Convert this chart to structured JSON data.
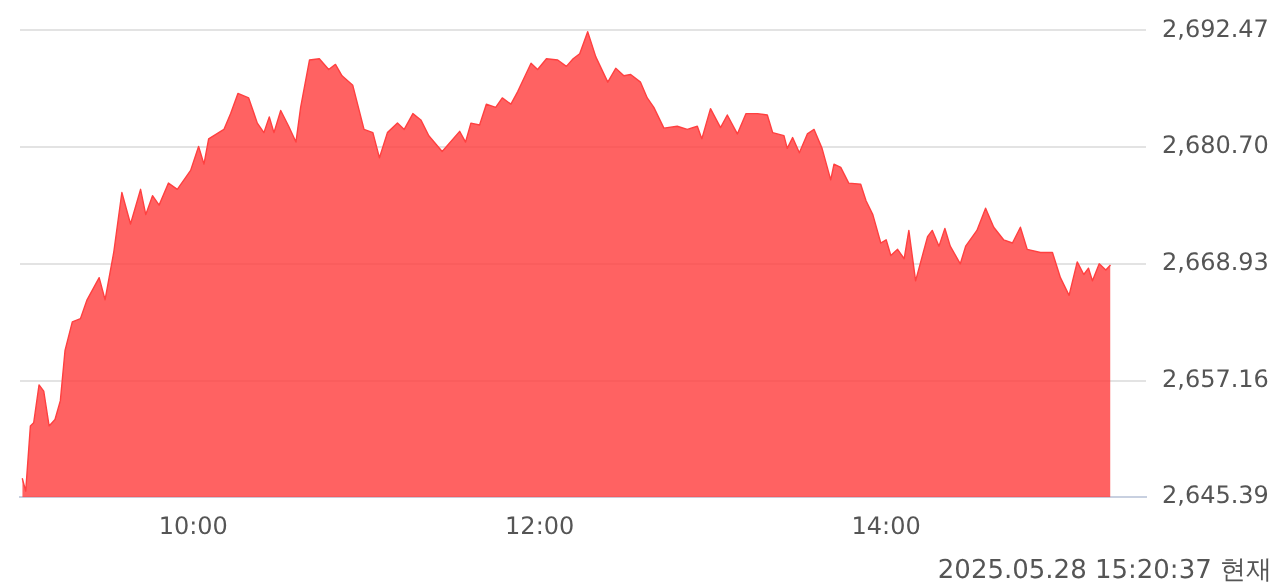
{
  "chart_data": {
    "type": "area",
    "annotations": [
      "2025.05.28 15:20:37 현재"
    ],
    "xlim": [
      9,
      15.5
    ],
    "xticks": [
      {
        "value": 10,
        "label": "10:00"
      },
      {
        "value": 12,
        "label": "12:00"
      },
      {
        "value": 14,
        "label": "14:00"
      }
    ],
    "ylim": [
      2645.39,
      2692.47
    ],
    "yticks": [
      {
        "value": 2645.39,
        "label": "2,645.39"
      },
      {
        "value": 2657.16,
        "label": "2,657.16"
      },
      {
        "value": 2668.93,
        "label": "2,668.93"
      },
      {
        "value": 2680.7,
        "label": "2,680.70"
      },
      {
        "value": 2692.47,
        "label": "2,692.47"
      }
    ],
    "grid": "y",
    "x": [
      9.013,
      9.033,
      9.06,
      9.079,
      9.11,
      9.137,
      9.168,
      9.202,
      9.233,
      9.26,
      9.302,
      9.349,
      9.387,
      9.457,
      9.491,
      9.541,
      9.588,
      9.638,
      9.696,
      9.726,
      9.765,
      9.803,
      9.857,
      9.908,
      9.985,
      10.031,
      10.062,
      10.089,
      10.177,
      10.216,
      10.258,
      10.32,
      10.37,
      10.408,
      10.439,
      10.466,
      10.505,
      10.551,
      10.593,
      10.62,
      10.671,
      10.728,
      10.782,
      10.821,
      10.859,
      10.921,
      10.986,
      11.037,
      11.075,
      11.121,
      11.179,
      11.218,
      11.268,
      11.314,
      11.36,
      11.437,
      11.538,
      11.572,
      11.603,
      11.653,
      11.692,
      11.746,
      11.784,
      11.834,
      11.873,
      11.95,
      11.988,
      12.039,
      12.104,
      12.154,
      12.193,
      12.231,
      12.277,
      12.324,
      12.393,
      12.439,
      12.486,
      12.525,
      12.582,
      12.621,
      12.659,
      12.717,
      12.794,
      12.852,
      12.91,
      12.936,
      12.986,
      13.044,
      13.083,
      13.141,
      13.191,
      13.256,
      13.314,
      13.345,
      13.41,
      13.429,
      13.46,
      13.499,
      13.545,
      13.584,
      13.63,
      13.68,
      13.699,
      13.738,
      13.784,
      13.853,
      13.884,
      13.923,
      13.969,
      14.0,
      14.027,
      14.066,
      14.104,
      14.131,
      14.17,
      14.239,
      14.266,
      14.305,
      14.339,
      14.37,
      14.428,
      14.459,
      14.524,
      14.574,
      14.621,
      14.678,
      14.729,
      14.775,
      14.814,
      14.891,
      14.96,
      15.006,
      15.056,
      15.103,
      15.141,
      15.168,
      15.191,
      15.23,
      15.268,
      15.295
    ],
    "series": [
      {
        "color": "#ff4040",
        "values": [
          2647.3,
          2646.0,
          2652.58,
          2652.9,
          2656.72,
          2656.08,
          2652.58,
          2653.22,
          2655.13,
          2660.2,
          2663.08,
          2663.4,
          2665.3,
          2667.53,
          2665.3,
          2670.07,
          2676.12,
          2672.94,
          2676.44,
          2673.89,
          2675.8,
          2674.85,
          2677.07,
          2676.44,
          2678.35,
          2680.76,
          2678.98,
          2681.53,
          2682.48,
          2684.08,
          2686.11,
          2685.66,
          2683.12,
          2682.16,
          2683.75,
          2682.16,
          2684.39,
          2682.8,
          2681.21,
          2684.71,
          2689.48,
          2689.61,
          2688.53,
          2689.04,
          2687.89,
          2686.93,
          2682.48,
          2682.16,
          2679.62,
          2682.16,
          2683.12,
          2682.48,
          2684.08,
          2683.44,
          2681.85,
          2680.25,
          2682.29,
          2681.21,
          2683.12,
          2682.93,
          2685.03,
          2684.71,
          2685.66,
          2685.03,
          2686.3,
          2689.16,
          2688.53,
          2689.61,
          2689.48,
          2688.84,
          2689.61,
          2690.12,
          2692.34,
          2689.8,
          2687.25,
          2688.65,
          2687.89,
          2688.02,
          2687.25,
          2685.66,
          2684.71,
          2682.61,
          2682.8,
          2682.48,
          2682.8,
          2681.53,
          2684.58,
          2682.67,
          2683.94,
          2682.03,
          2684.08,
          2684.08,
          2683.94,
          2682.16,
          2681.85,
          2680.57,
          2681.66,
          2680.13,
          2682.03,
          2682.48,
          2680.57,
          2677.39,
          2678.98,
          2678.66,
          2677.07,
          2676.95,
          2675.29,
          2673.89,
          2671.03,
          2671.35,
          2669.76,
          2670.39,
          2669.44,
          2672.3,
          2667.21,
          2671.67,
          2672.3,
          2670.71,
          2672.49,
          2670.71,
          2668.93,
          2670.71,
          2672.3,
          2674.53,
          2672.62,
          2671.35,
          2671.03,
          2672.62,
          2670.39,
          2670.07,
          2670.07,
          2667.53,
          2665.75,
          2669.12,
          2667.85,
          2668.49,
          2667.21,
          2668.93,
          2668.3,
          2668.8
        ]
      }
    ]
  }
}
